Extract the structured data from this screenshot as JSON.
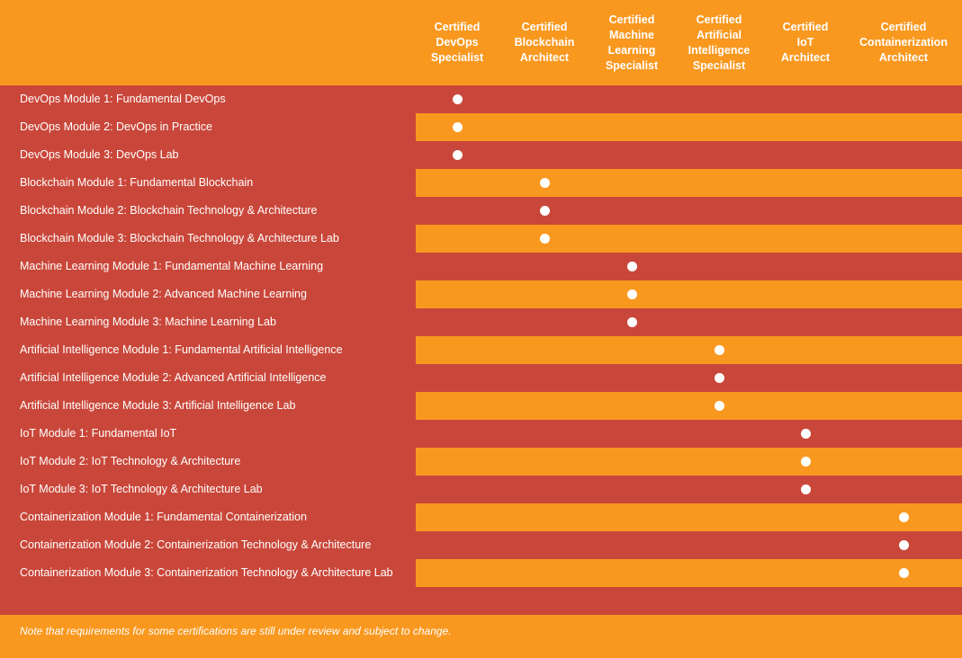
{
  "colors": {
    "orange": "#F9981F",
    "red": "#C9473A",
    "dot": "#ffffff"
  },
  "columns": [
    {
      "lines": [
        "Certified",
        "DevOps",
        "Specialist"
      ]
    },
    {
      "lines": [
        "Certified",
        "Blockchain",
        "Architect"
      ]
    },
    {
      "lines": [
        "Certified",
        "Machine",
        "Learning",
        "Specialist"
      ]
    },
    {
      "lines": [
        "Certified",
        "Artificial",
        "Intelligence",
        "Specialist"
      ]
    },
    {
      "lines": [
        "Certified",
        "IoT",
        "Architect"
      ]
    },
    {
      "lines": [
        "Certified",
        "Containerization",
        "Architect"
      ]
    }
  ],
  "rows": [
    {
      "label": "DevOps Module 1: Fundamental DevOps",
      "certs": [
        0
      ]
    },
    {
      "label": "DevOps Module 2: DevOps in Practice",
      "certs": [
        0
      ]
    },
    {
      "label": "DevOps Module 3: DevOps Lab",
      "certs": [
        0
      ]
    },
    {
      "label": "Blockchain Module 1: Fundamental Blockchain",
      "certs": [
        1
      ]
    },
    {
      "label": "Blockchain Module 2: Blockchain Technology & Architecture",
      "certs": [
        1
      ]
    },
    {
      "label": "Blockchain Module 3: Blockchain Technology & Architecture Lab",
      "certs": [
        1
      ]
    },
    {
      "label": "Machine Learning Module 1: Fundamental Machine Learning",
      "certs": [
        2
      ]
    },
    {
      "label": "Machine Learning Module 2: Advanced Machine Learning",
      "certs": [
        2
      ]
    },
    {
      "label": "Machine Learning Module 3: Machine Learning Lab",
      "certs": [
        2
      ]
    },
    {
      "label": "Artificial Intelligence Module 1: Fundamental Artificial Intelligence",
      "certs": [
        3
      ]
    },
    {
      "label": "Artificial Intelligence Module 2: Advanced Artificial Intelligence",
      "certs": [
        3
      ]
    },
    {
      "label": "Artificial Intelligence Module 3: Artificial Intelligence Lab",
      "certs": [
        3
      ]
    },
    {
      "label": "IoT Module 1: Fundamental IoT",
      "certs": [
        4
      ]
    },
    {
      "label": "IoT Module 2: IoT Technology & Architecture",
      "certs": [
        4
      ]
    },
    {
      "label": "IoT Module 3: IoT Technology & Architecture Lab",
      "certs": [
        4
      ]
    },
    {
      "label": "Containerization Module 1: Fundamental Containerization",
      "certs": [
        5
      ]
    },
    {
      "label": "Containerization Module 2: Containerization Technology & Architecture",
      "certs": [
        5
      ]
    },
    {
      "label": "Containerization Module 3: Containerization Technology & Architecture Lab",
      "certs": [
        5
      ]
    }
  ],
  "footer": {
    "note": "Note that requirements for some certifications are still under review and subject to change."
  }
}
